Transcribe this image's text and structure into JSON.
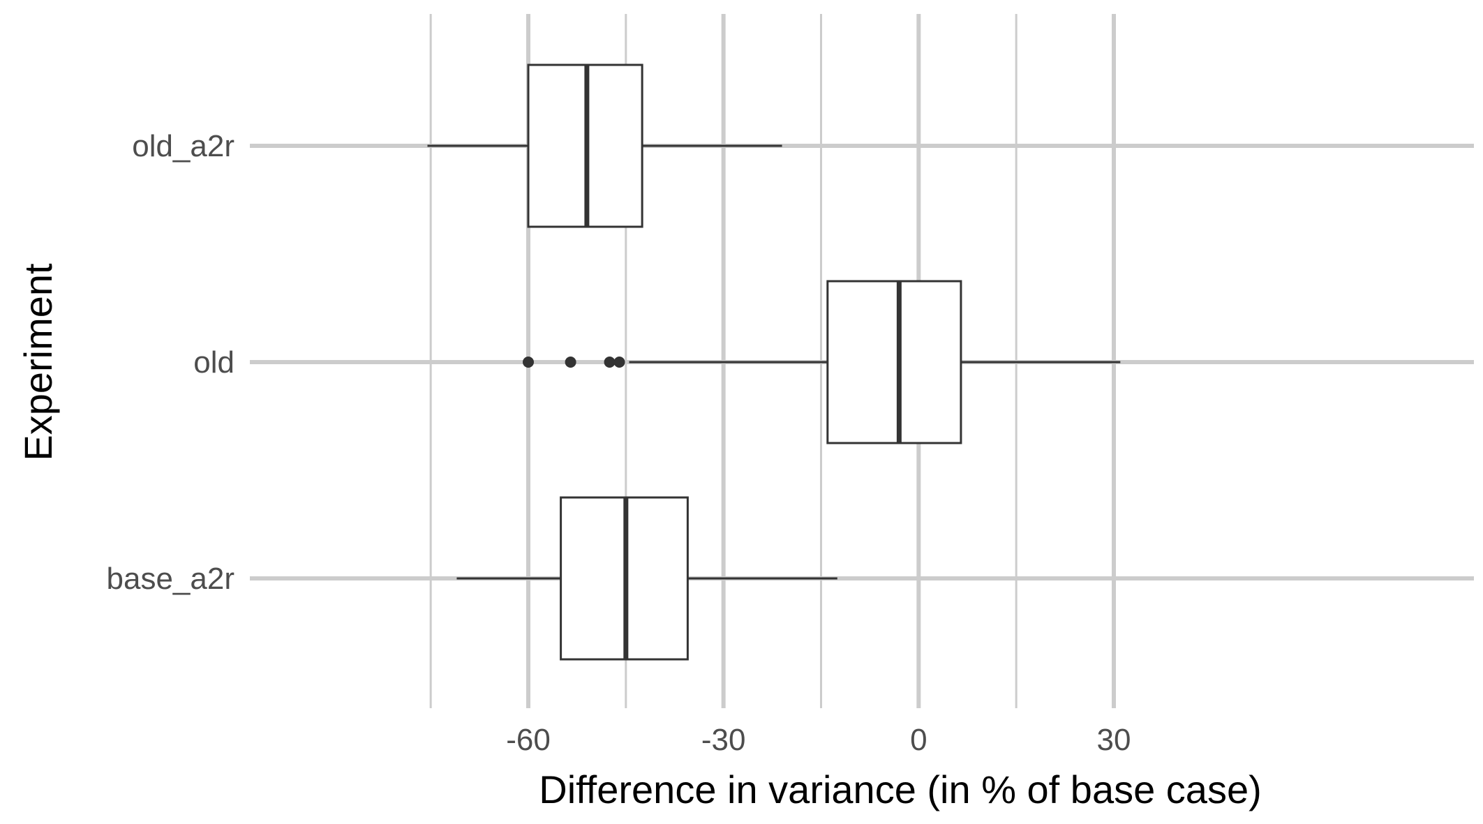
{
  "chart_data": {
    "type": "boxplot",
    "orientation": "horizontal",
    "xlabel": "Difference in variance (in % of base case)",
    "ylabel": "Experiment",
    "xlim": [
      -85,
      36
    ],
    "x_ticks": [
      -60,
      -30,
      0,
      30
    ],
    "x_tick_labels": [
      "-60",
      "-30",
      "0",
      "30"
    ],
    "x_minor_ticks": [
      -75,
      -45,
      -15,
      15
    ],
    "grid": true,
    "categories": [
      "old_a2r",
      "old",
      "base_a2r"
    ],
    "boxes": [
      {
        "category": "old_a2r",
        "whisker_low": -75.5,
        "q1": -60,
        "median": -51,
        "q3": -42.5,
        "whisker_high": -21,
        "outliers": []
      },
      {
        "category": "old",
        "whisker_low": -44.5,
        "q1": -14,
        "median": -3,
        "q3": 6.5,
        "whisker_high": 31,
        "outliers": [
          -60,
          -53.5,
          -47.5,
          -46
        ]
      },
      {
        "category": "base_a2r",
        "whisker_low": -71,
        "q1": -55,
        "median": -45,
        "q3": -35.5,
        "whisker_high": -12.5,
        "outliers": []
      }
    ],
    "colors": {
      "background": "#ffffff",
      "grid_major": "#cccccc",
      "grid_minor": "#cccccc",
      "box_stroke": "#333333",
      "box_fill": "#ffffff",
      "tick_text": "#4d4d4d",
      "title_text": "#000000"
    }
  }
}
